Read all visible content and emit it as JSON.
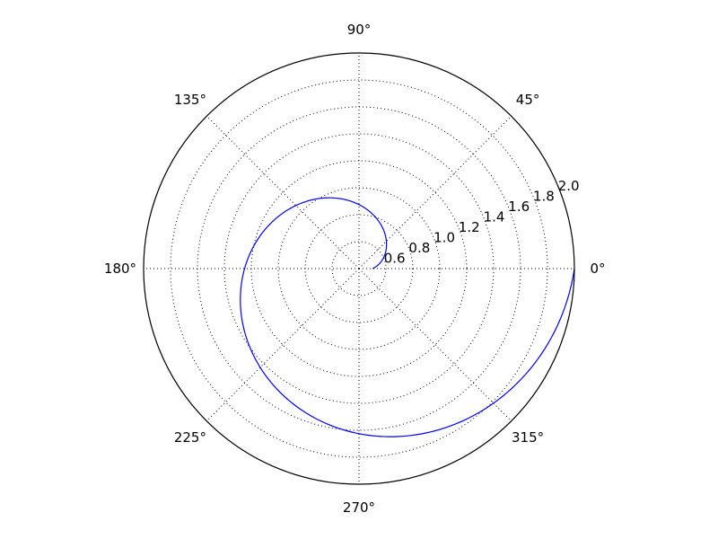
{
  "chart_data": {
    "type": "line",
    "projection": "polar",
    "title": "",
    "theta_unit": "degrees",
    "theta_tick_labels": [
      {
        "angle": 0,
        "label": "0°"
      },
      {
        "angle": 45,
        "label": "45°"
      },
      {
        "angle": 90,
        "label": "90°"
      },
      {
        "angle": 135,
        "label": "135°"
      },
      {
        "angle": 180,
        "label": "180°"
      },
      {
        "angle": 225,
        "label": "225°"
      },
      {
        "angle": 270,
        "label": "270°"
      },
      {
        "angle": 315,
        "label": "315°"
      }
    ],
    "r_tick_labels": [
      {
        "value": 0.6,
        "label": "0.6"
      },
      {
        "value": 0.8,
        "label": "0.8"
      },
      {
        "value": 1.0,
        "label": "1.0"
      },
      {
        "value": 1.2,
        "label": "1.2"
      },
      {
        "value": 1.4,
        "label": "1.4"
      },
      {
        "value": 1.6,
        "label": "1.6"
      },
      {
        "value": 1.8,
        "label": "1.8"
      },
      {
        "value": 2.0,
        "label": "2.0"
      }
    ],
    "rlim": [
      0.4,
      2.0
    ],
    "r_tick_label_angle_deg": 22.5,
    "grid": true,
    "series": [
      {
        "color": "#0000ff",
        "equation": "r = 0.5 + 0.75 * theta / pi",
        "theta_range_turns": [
          0,
          1
        ],
        "points": [
          {
            "theta": 0,
            "r": 0.5
          },
          {
            "theta": 45,
            "r": 0.6875
          },
          {
            "theta": 90,
            "r": 0.875
          },
          {
            "theta": 135,
            "r": 1.0625
          },
          {
            "theta": 180,
            "r": 1.25
          },
          {
            "theta": 225,
            "r": 1.4375
          },
          {
            "theta": 270,
            "r": 1.625
          },
          {
            "theta": 315,
            "r": 1.8125
          },
          {
            "theta": 360,
            "r": 2.0
          }
        ]
      }
    ]
  }
}
